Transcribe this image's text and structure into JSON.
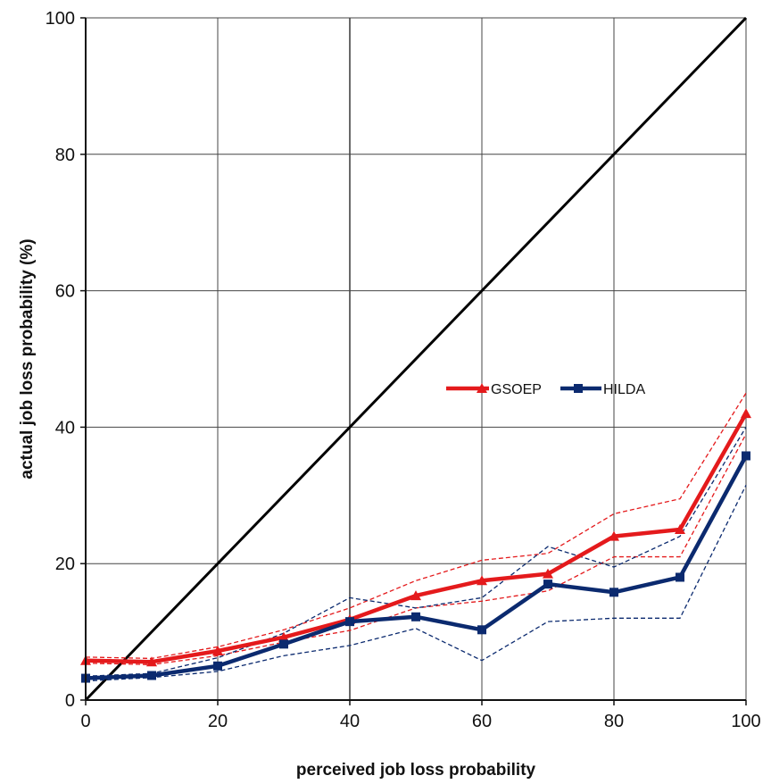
{
  "chart_data": {
    "type": "line",
    "title": "",
    "xlabel": "perceived job loss probability",
    "ylabel": "actual job loss probability (%)",
    "xlim": [
      0,
      100
    ],
    "ylim": [
      0,
      100
    ],
    "xticks": [
      0,
      20,
      40,
      60,
      80,
      100
    ],
    "yticks": [
      0,
      20,
      40,
      60,
      80,
      100
    ],
    "grid": true,
    "legend_position": "center-right",
    "x": [
      0,
      10,
      20,
      30,
      40,
      50,
      60,
      70,
      80,
      90,
      100
    ],
    "series": [
      {
        "name": "GSOEP",
        "color": "#e41a1c",
        "marker": "triangle",
        "values": [
          5.8,
          5.6,
          7.2,
          9.2,
          11.8,
          15.3,
          17.5,
          18.5,
          24,
          25,
          42
        ],
        "ci_upper": [
          6.3,
          6.1,
          7.8,
          10.3,
          13.5,
          17.5,
          20.5,
          21.5,
          27.3,
          29.5,
          45
        ],
        "ci_lower": [
          5.4,
          5.2,
          6.5,
          8.5,
          10.2,
          13.5,
          14.5,
          16,
          21,
          21,
          39
        ]
      },
      {
        "name": "HILDA",
        "color": "#0b2a6f",
        "marker": "square",
        "values": [
          3.2,
          3.6,
          5.0,
          8.2,
          11.5,
          12.2,
          10.3,
          17,
          15.8,
          18,
          35.8
        ],
        "ci_upper": [
          3.5,
          3.9,
          6.2,
          9.8,
          15,
          13.5,
          15,
          22.5,
          19.5,
          24,
          40
        ],
        "ci_lower": [
          2.8,
          3.3,
          4.2,
          6.5,
          8,
          10.5,
          5.8,
          11.5,
          12,
          12,
          31.5
        ]
      }
    ],
    "reference_line": {
      "name": "45-degree line",
      "x": [
        0,
        100
      ],
      "y": [
        0,
        100
      ],
      "color": "#000000"
    }
  }
}
